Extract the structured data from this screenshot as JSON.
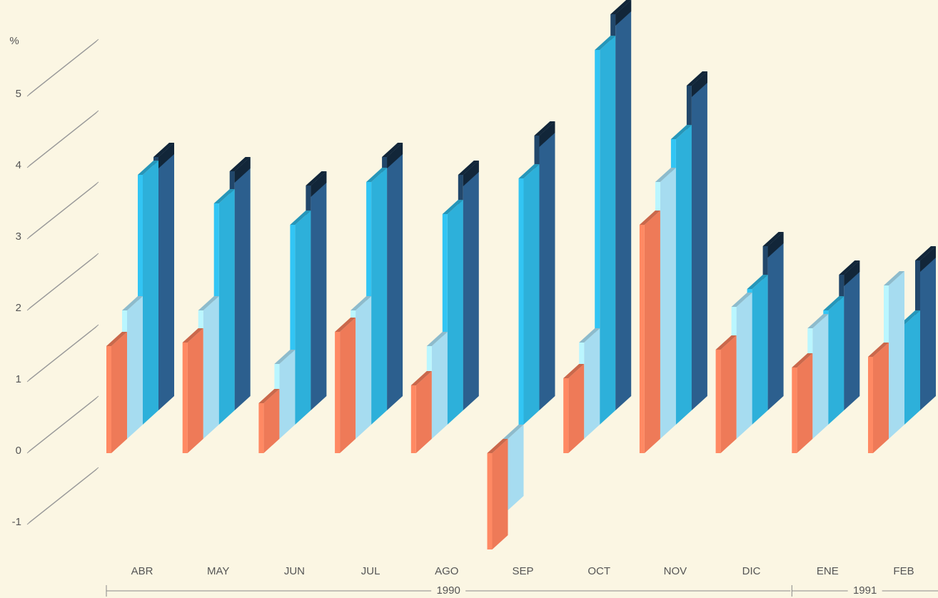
{
  "chart_data": {
    "type": "bar3d",
    "y_label": "%",
    "categories": [
      "ABR",
      "MAY",
      "JUN",
      "JUL",
      "AGO",
      "SEP",
      "OCT",
      "NOV",
      "DIC",
      "ENE",
      "FEB"
    ],
    "x_groups": [
      {
        "label": "1990",
        "first": 0,
        "last": 8
      },
      {
        "label": "1991",
        "first": 9,
        "last": 10
      }
    ],
    "series": [
      {
        "color": "#ee7a58",
        "values": [
          1.5,
          1.55,
          0.7,
          1.7,
          0.95,
          -1.35,
          1.05,
          3.2,
          1.45,
          1.2,
          1.35
        ]
      },
      {
        "color": "#a6dcf0",
        "values": [
          1.8,
          1.8,
          1.05,
          1.8,
          1.3,
          -1.0,
          1.35,
          3.6,
          1.85,
          1.55,
          2.15
        ]
      },
      {
        "color": "#2db0da",
        "values": [
          3.5,
          3.1,
          2.8,
          3.4,
          2.95,
          3.45,
          5.25,
          4.0,
          1.9,
          1.6,
          1.4
        ]
      },
      {
        "color": "#2c5f8e",
        "values": [
          3.55,
          3.35,
          3.15,
          3.55,
          3.3,
          3.85,
          5.55,
          4.55,
          2.3,
          1.9,
          2.1
        ]
      }
    ],
    "ylim": [
      -1.4,
      5.8
    ],
    "yticks": [
      -1,
      0,
      1,
      2,
      3,
      4,
      5
    ]
  }
}
